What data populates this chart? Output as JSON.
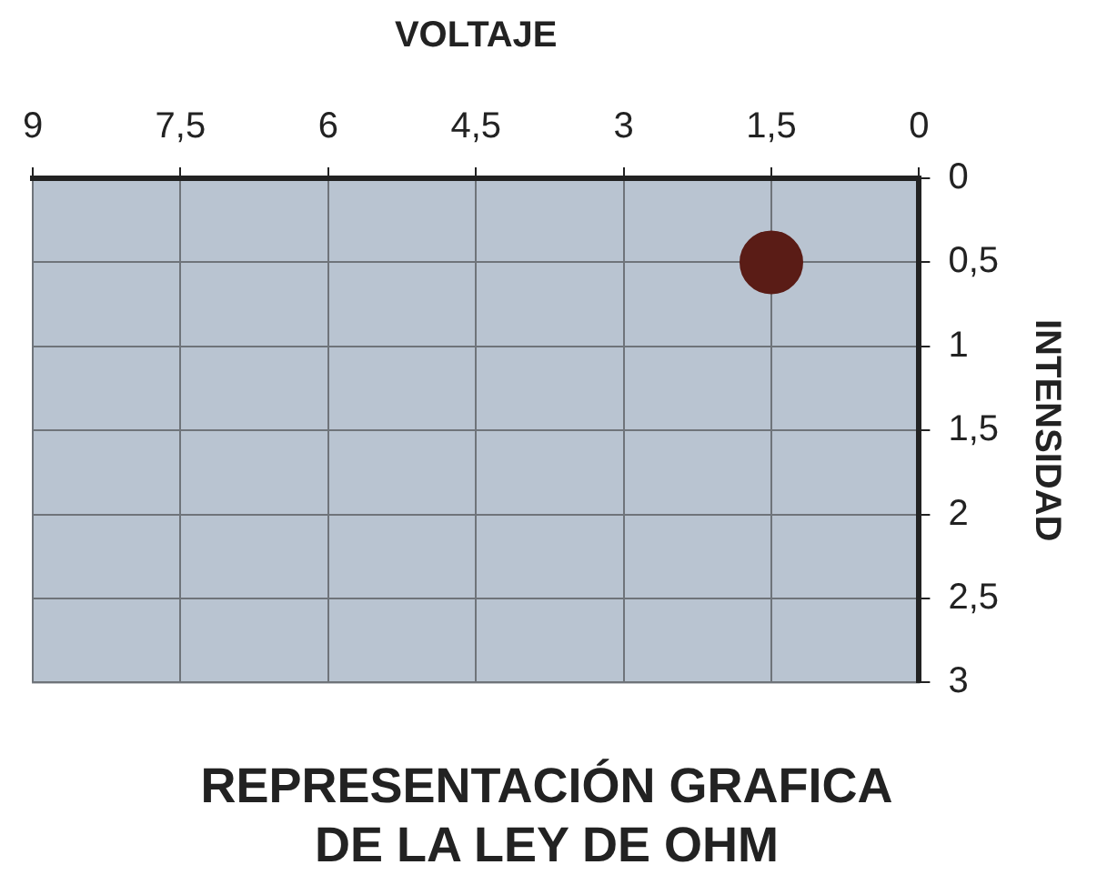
{
  "chart_data": {
    "type": "scatter",
    "title": "REPRESENTACIÓN GRAFICA\nDE LA LEY DE OHM",
    "xlabel": "VOLTAJE",
    "ylabel": "INTENSIDAD",
    "x": [
      1.5
    ],
    "values": [
      0.5
    ],
    "color": "#5a1c16",
    "marker": "circle",
    "xlim": [
      9,
      0
    ],
    "xticks": [
      0,
      {
        "value": 1.5,
        "label": "1,5"
      },
      3,
      {
        "value": 4.5,
        "label": "4,5"
      },
      6,
      {
        "value": 7.5,
        "label": "7,5"
      },
      9
    ],
    "ylim": [
      3,
      0
    ],
    "yticks": [
      0,
      {
        "value": 0.5,
        "label": "0,5"
      },
      1,
      {
        "value": 1.5,
        "label": "1,5"
      },
      2,
      {
        "value": 2.5,
        "label": "2,5"
      },
      3
    ],
    "grid": true,
    "legend": false
  }
}
